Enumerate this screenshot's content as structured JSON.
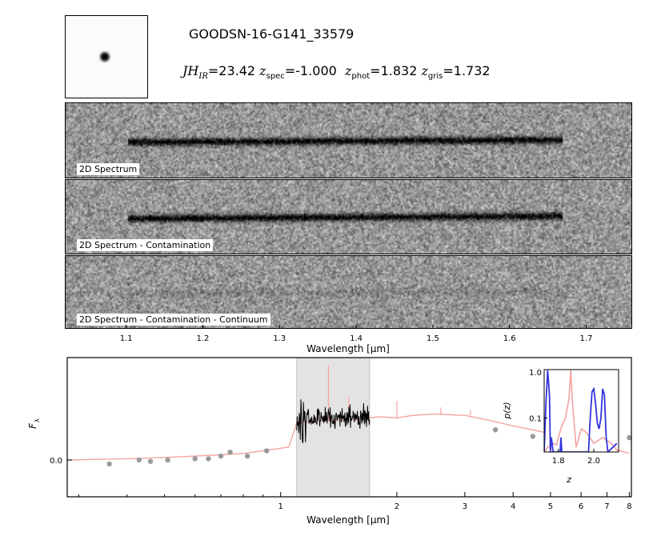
{
  "header": {
    "object_id": "GOODSN-16-G141_33579",
    "mag_label": "JH",
    "mag_sub": "IR",
    "mag_value": "=23.42",
    "zspec_label": "z",
    "zspec_sub": "spec",
    "zspec_value": "=-1.000",
    "zphot_label": "z",
    "zphot_sub": "phot",
    "zphot_value": "=1.832",
    "zgris_label": "z",
    "zgris_sub": "gris",
    "zgris_value": "=1.732"
  },
  "panels": [
    {
      "label": "2D Spectrum"
    },
    {
      "label": "2D Spectrum - Contamination"
    },
    {
      "label": "2D Spectrum - Contamination - Continuum"
    }
  ],
  "chart_data": [
    {
      "type": "heatmap",
      "name_2d": "2D spectra",
      "xlabel": "Wavelength [μm]",
      "xlim": [
        1.02,
        1.76
      ],
      "xticks": [
        1.1,
        1.2,
        1.3,
        1.4,
        1.5,
        1.6,
        1.7
      ],
      "xticklabels": [
        "1.1",
        "1.2",
        "1.3",
        "1.4",
        "1.5",
        "1.6",
        "1.7"
      ],
      "trace_range": [
        1.1,
        1.67
      ]
    },
    {
      "type": "line",
      "xlabel": "Wavelength [μm]",
      "ylabel": "F",
      "ylabel_sub": "λ",
      "xscale": "log",
      "xlim": [
        0.28,
        8.1
      ],
      "ylim": [
        -0.28,
        0.78
      ],
      "xticks": [
        1,
        2,
        3,
        4,
        5,
        6,
        7,
        8
      ],
      "xticklabels": [
        "1",
        "2",
        "3",
        "4",
        "5",
        "6",
        "7",
        "8"
      ],
      "yticks": [
        0.0
      ],
      "yticklabels": [
        "0.0"
      ],
      "shaded_region": [
        1.1,
        1.7
      ],
      "colors": {
        "model": "#f4a3a3",
        "spectrum": "#000000",
        "photometry": "#999999",
        "shade": "#e3e3e3"
      },
      "model_sed": {
        "x": [
          0.28,
          0.4,
          0.5,
          0.6,
          0.7,
          0.8,
          0.9,
          1.0,
          1.05,
          1.1,
          1.2,
          1.3,
          1.4,
          1.5,
          1.6,
          1.7,
          1.8,
          2.0,
          2.2,
          2.5,
          3.0,
          3.5,
          4.0,
          4.5,
          5.0,
          6.0,
          7.0,
          8.0
        ],
        "y": [
          0.0,
          0.01,
          0.02,
          0.03,
          0.04,
          0.05,
          0.07,
          0.09,
          0.1,
          0.28,
          0.29,
          0.3,
          0.3,
          0.31,
          0.31,
          0.32,
          0.33,
          0.32,
          0.34,
          0.35,
          0.34,
          0.3,
          0.26,
          0.23,
          0.2,
          0.15,
          0.1,
          0.05
        ]
      },
      "model_lines": {
        "x": [
          1.33,
          1.5,
          2.0,
          2.6,
          3.1
        ],
        "y": [
          0.72,
          0.48,
          0.45,
          0.4,
          0.38
        ]
      },
      "spectrum_range": [
        1.1,
        1.7
      ],
      "spectrum_level": 0.32,
      "photometry": {
        "x": [
          0.36,
          0.43,
          0.46,
          0.51,
          0.6,
          0.65,
          0.7,
          0.74,
          0.82,
          0.92,
          3.6,
          4.5,
          5.8,
          8.0
        ],
        "y": [
          -0.03,
          0.0,
          -0.01,
          0.0,
          0.01,
          0.01,
          0.03,
          0.06,
          0.03,
          0.07,
          0.23,
          0.18,
          0.16,
          0.17
        ]
      }
    },
    {
      "type": "line",
      "name_inset": "p(z)",
      "xlabel": "z",
      "ylabel": "p(z)",
      "yscale": "log",
      "xlim": [
        1.72,
        2.14
      ],
      "ylim": [
        0.02,
        1.0
      ],
      "xticks": [
        1.8,
        2.0
      ],
      "xticklabels": [
        "1.8",
        "2.0"
      ],
      "yticks": [
        0.1,
        1.0
      ],
      "yticklabels": [
        "0.1",
        "1.0"
      ],
      "series": [
        {
          "color": "#f4a3a3",
          "x": [
            1.72,
            1.74,
            1.77,
            1.79,
            1.8,
            1.82,
            1.84,
            1.86,
            1.87,
            1.88,
            1.9,
            1.93,
            1.96,
            2.0,
            2.05,
            2.1,
            2.14
          ],
          "y": [
            0.02,
            0.025,
            0.03,
            0.028,
            0.04,
            0.07,
            0.1,
            0.25,
            1.0,
            0.2,
            0.025,
            0.06,
            0.05,
            0.03,
            0.04,
            0.03,
            0.02
          ]
        },
        {
          "color": "#3333dd",
          "x": [
            1.72,
            1.73,
            1.74,
            1.75,
            1.755,
            1.76,
            1.765,
            1.77,
            1.78,
            1.81,
            1.815,
            1.82,
            1.83,
            1.97,
            1.98,
            1.99,
            2.0,
            2.01,
            2.02,
            2.03,
            2.04,
            2.05,
            2.06,
            2.07,
            2.08,
            2.13
          ],
          "y": [
            0.02,
            0.2,
            0.97,
            0.3,
            0.02,
            0.04,
            0.03,
            0.02,
            0.02,
            0.02,
            0.04,
            0.02,
            0.02,
            0.02,
            0.1,
            0.35,
            0.4,
            0.2,
            0.08,
            0.06,
            0.1,
            0.4,
            0.3,
            0.04,
            0.02,
            0.03
          ]
        }
      ]
    }
  ]
}
